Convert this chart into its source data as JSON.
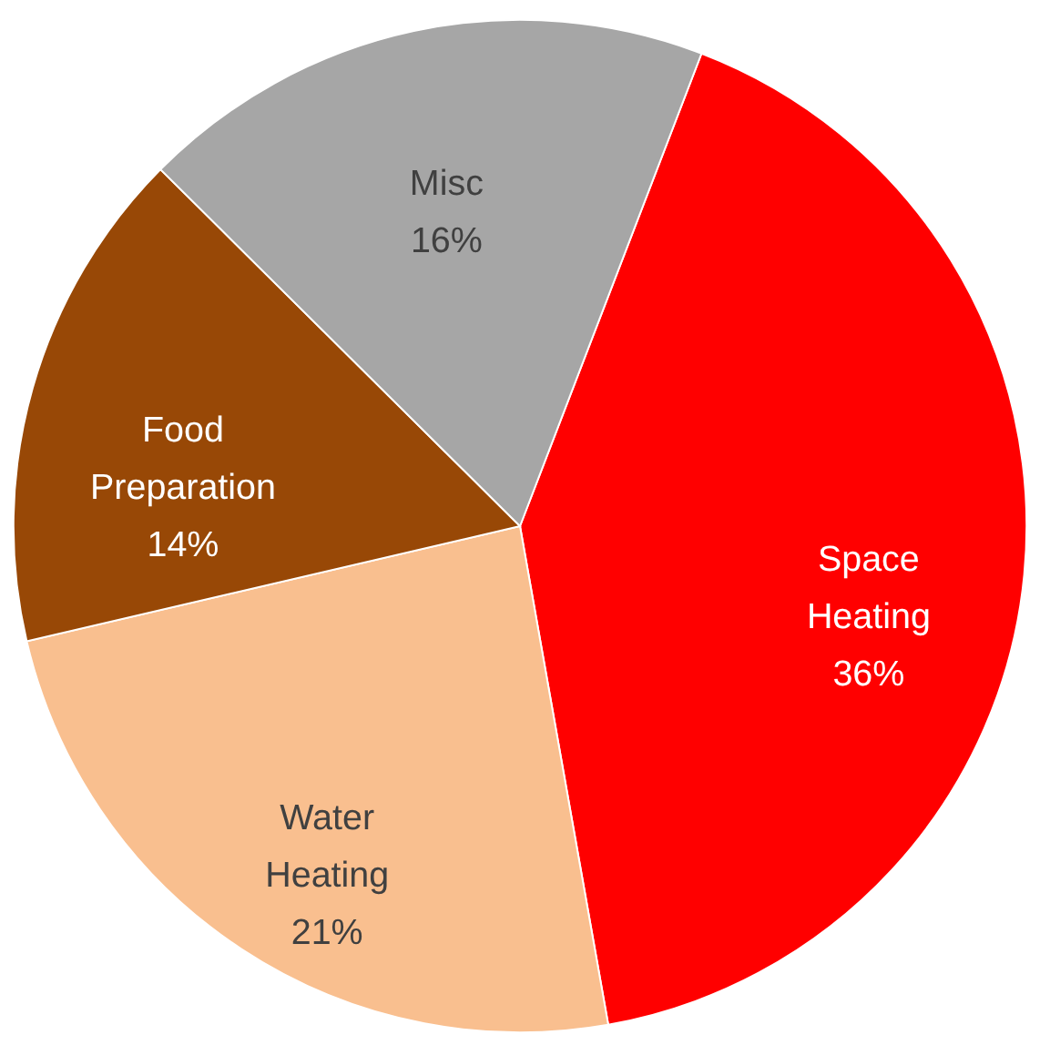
{
  "chart_data": {
    "type": "pie",
    "categories": [
      "Space Heating",
      "Water Heating",
      "Food Preparation",
      "Misc"
    ],
    "values": [
      36,
      21,
      14,
      16
    ],
    "value_labels": [
      "36%",
      "21%",
      "14%",
      "16%"
    ],
    "colors": [
      "#ff0000",
      "#f9bf8f",
      "#984806",
      "#a6a6a6"
    ],
    "legend": false
  }
}
